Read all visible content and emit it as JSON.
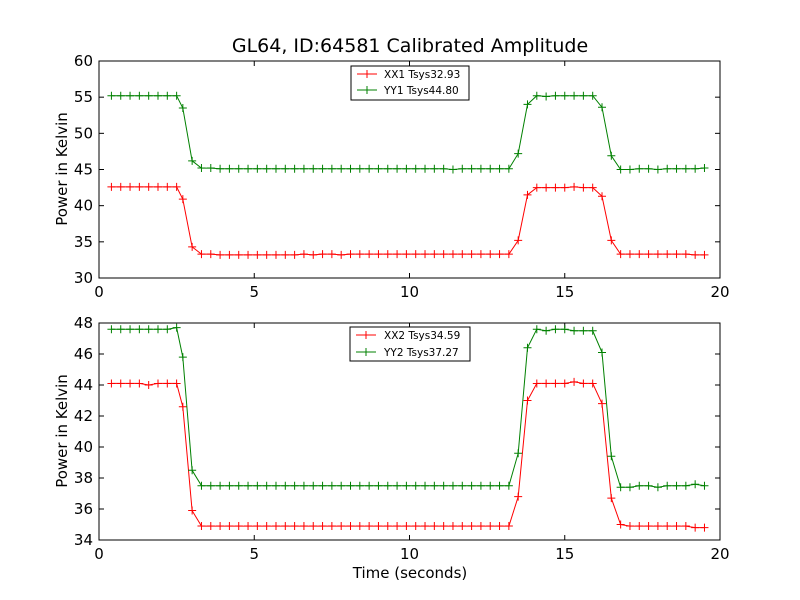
{
  "chart_data": [
    {
      "type": "line",
      "title": "GL64, ID:64581 Calibrated Amplitude",
      "xlabel": "",
      "ylabel": "Power in Kelvin",
      "xlim": [
        0,
        20
      ],
      "ylim": [
        30,
        60
      ],
      "xticks": [
        0,
        5,
        10,
        15,
        20
      ],
      "yticks": [
        30,
        35,
        40,
        45,
        50,
        55,
        60
      ],
      "grid": false,
      "legend_position": "top-center",
      "x": [
        0.4,
        0.7,
        1.0,
        1.3,
        1.6,
        1.9,
        2.2,
        2.5,
        2.7,
        3.0,
        3.3,
        3.6,
        3.9,
        4.2,
        4.5,
        4.8,
        5.1,
        5.4,
        5.7,
        6.0,
        6.3,
        6.6,
        6.9,
        7.2,
        7.5,
        7.8,
        8.1,
        8.4,
        8.7,
        9.0,
        9.3,
        9.6,
        9.9,
        10.2,
        10.5,
        10.8,
        11.1,
        11.4,
        11.7,
        12.0,
        12.3,
        12.6,
        12.9,
        13.2,
        13.5,
        13.8,
        14.1,
        14.4,
        14.7,
        15.0,
        15.3,
        15.6,
        15.9,
        16.2,
        16.5,
        16.8,
        17.1,
        17.4,
        17.7,
        18.0,
        18.3,
        18.6,
        18.9,
        19.2,
        19.5
      ],
      "series": [
        {
          "name": "XX1 Tsys32.93",
          "color": "#ff0000",
          "values": [
            42.6,
            42.6,
            42.6,
            42.6,
            42.6,
            42.6,
            42.6,
            42.6,
            40.9,
            34.3,
            33.3,
            33.3,
            33.2,
            33.2,
            33.2,
            33.2,
            33.2,
            33.2,
            33.2,
            33.2,
            33.2,
            33.3,
            33.2,
            33.3,
            33.3,
            33.2,
            33.3,
            33.3,
            33.3,
            33.3,
            33.3,
            33.3,
            33.3,
            33.3,
            33.3,
            33.3,
            33.3,
            33.3,
            33.3,
            33.3,
            33.3,
            33.3,
            33.3,
            33.3,
            35.2,
            41.5,
            42.5,
            42.5,
            42.5,
            42.5,
            42.6,
            42.5,
            42.5,
            41.3,
            35.2,
            33.3,
            33.3,
            33.3,
            33.3,
            33.3,
            33.3,
            33.3,
            33.3,
            33.2,
            33.2
          ]
        },
        {
          "name": "YY1 Tsys44.80",
          "color": "#008000",
          "values": [
            55.2,
            55.2,
            55.2,
            55.2,
            55.2,
            55.2,
            55.2,
            55.2,
            53.5,
            46.2,
            45.2,
            45.2,
            45.1,
            45.1,
            45.1,
            45.1,
            45.1,
            45.1,
            45.1,
            45.1,
            45.1,
            45.1,
            45.1,
            45.1,
            45.1,
            45.1,
            45.1,
            45.1,
            45.1,
            45.1,
            45.1,
            45.1,
            45.1,
            45.1,
            45.1,
            45.1,
            45.1,
            45.0,
            45.1,
            45.1,
            45.1,
            45.1,
            45.1,
            45.1,
            47.2,
            54.0,
            55.2,
            55.1,
            55.2,
            55.2,
            55.2,
            55.2,
            55.2,
            53.6,
            46.9,
            45.0,
            45.0,
            45.1,
            45.1,
            45.0,
            45.1,
            45.1,
            45.1,
            45.1,
            45.2
          ]
        }
      ]
    },
    {
      "type": "line",
      "title": "",
      "xlabel": "Time (seconds)",
      "ylabel": "Power in Kelvin",
      "xlim": [
        0,
        20
      ],
      "ylim": [
        34,
        48
      ],
      "xticks": [
        0,
        5,
        10,
        15,
        20
      ],
      "yticks": [
        34,
        36,
        38,
        40,
        42,
        44,
        46,
        48
      ],
      "grid": false,
      "legend_position": "top-center",
      "x": [
        0.4,
        0.7,
        1.0,
        1.3,
        1.6,
        1.9,
        2.2,
        2.5,
        2.7,
        3.0,
        3.3,
        3.6,
        3.9,
        4.2,
        4.5,
        4.8,
        5.1,
        5.4,
        5.7,
        6.0,
        6.3,
        6.6,
        6.9,
        7.2,
        7.5,
        7.8,
        8.1,
        8.4,
        8.7,
        9.0,
        9.3,
        9.6,
        9.9,
        10.2,
        10.5,
        10.8,
        11.1,
        11.4,
        11.7,
        12.0,
        12.3,
        12.6,
        12.9,
        13.2,
        13.5,
        13.8,
        14.1,
        14.4,
        14.7,
        15.0,
        15.3,
        15.6,
        15.9,
        16.2,
        16.5,
        16.8,
        17.1,
        17.4,
        17.7,
        18.0,
        18.3,
        18.6,
        18.9,
        19.2,
        19.5
      ],
      "series": [
        {
          "name": "XX2 Tsys34.59",
          "color": "#ff0000",
          "values": [
            44.1,
            44.1,
            44.1,
            44.1,
            44.0,
            44.1,
            44.1,
            44.1,
            42.6,
            35.9,
            34.9,
            34.9,
            34.9,
            34.9,
            34.9,
            34.9,
            34.9,
            34.9,
            34.9,
            34.9,
            34.9,
            34.9,
            34.9,
            34.9,
            34.9,
            34.9,
            34.9,
            34.9,
            34.9,
            34.9,
            34.9,
            34.9,
            34.9,
            34.9,
            34.9,
            34.9,
            34.9,
            34.9,
            34.9,
            34.9,
            34.9,
            34.9,
            34.9,
            34.9,
            36.8,
            43.0,
            44.1,
            44.1,
            44.1,
            44.1,
            44.2,
            44.1,
            44.1,
            42.8,
            36.7,
            35.0,
            34.9,
            34.9,
            34.9,
            34.9,
            34.9,
            34.9,
            34.9,
            34.8,
            34.8
          ]
        },
        {
          "name": "YY2 Tsys37.27",
          "color": "#008000",
          "values": [
            47.6,
            47.6,
            47.6,
            47.6,
            47.6,
            47.6,
            47.6,
            47.7,
            45.8,
            38.5,
            37.5,
            37.5,
            37.5,
            37.5,
            37.5,
            37.5,
            37.5,
            37.5,
            37.5,
            37.5,
            37.5,
            37.5,
            37.5,
            37.5,
            37.5,
            37.5,
            37.5,
            37.5,
            37.5,
            37.5,
            37.5,
            37.5,
            37.5,
            37.5,
            37.5,
            37.5,
            37.5,
            37.5,
            37.5,
            37.5,
            37.5,
            37.5,
            37.5,
            37.5,
            39.6,
            46.4,
            47.6,
            47.5,
            47.6,
            47.6,
            47.5,
            47.5,
            47.5,
            46.1,
            39.4,
            37.4,
            37.4,
            37.5,
            37.5,
            37.4,
            37.5,
            37.5,
            37.5,
            37.6,
            37.5
          ]
        }
      ]
    }
  ]
}
